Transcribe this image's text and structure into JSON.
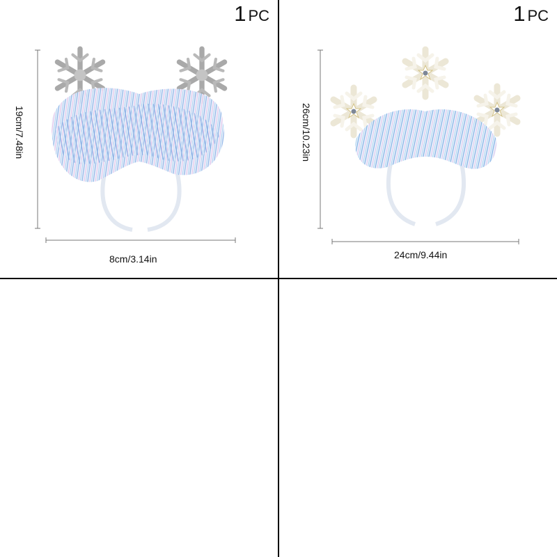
{
  "panels": [
    {
      "quantity": {
        "number": "1",
        "unit": "PC"
      },
      "height_label": "19cm/7.48in",
      "width_label": "8cm/3.14in",
      "product": "snowflake-tinsel-headband-silver"
    },
    {
      "quantity": {
        "number": "1",
        "unit": "PC"
      },
      "height_label": "26cm/10.23in",
      "width_label": "24cm/9.44in",
      "product": "snowflake-tinsel-headband-white"
    }
  ],
  "colors": {
    "divider": "#000000",
    "silver_snowflake": "#b8b8b8",
    "white_snowflake": "#f4f1e6",
    "tinsel_blue": "#8fb5e8",
    "tinsel_pink": "#e6c3ea",
    "band": "#e9eef5"
  }
}
